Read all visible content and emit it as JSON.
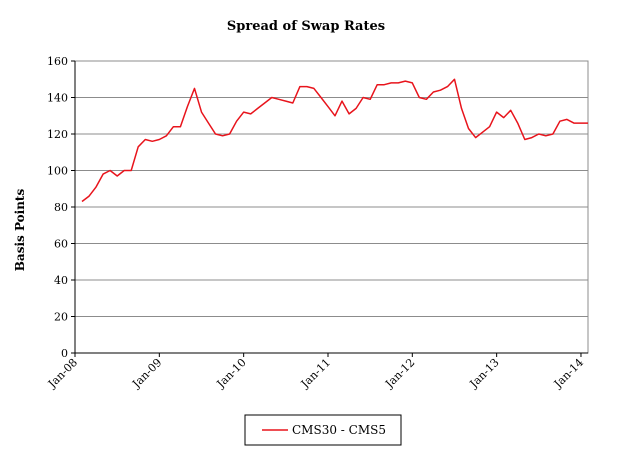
{
  "chart_data": {
    "type": "line",
    "title": "Spread of Swap Rates",
    "xlabel": "",
    "ylabel": "Basis Points",
    "ylim": [
      0,
      160
    ],
    "yticks": [
      0,
      20,
      40,
      60,
      80,
      100,
      120,
      140,
      160
    ],
    "xlim": [
      "Jan-08",
      "Feb-14"
    ],
    "xticks": [
      "Jan-08",
      "Jan-09",
      "Jan-10",
      "Jan-11",
      "Jan-12",
      "Jan-13",
      "Jan-14"
    ],
    "grid": "horizontal",
    "legend_position": "bottom",
    "series": [
      {
        "name": "CMS30 - CMS5",
        "color": "#e8141c",
        "x": [
          "Feb-08",
          "Mar-08",
          "Apr-08",
          "May-08",
          "Jun-08",
          "Jul-08",
          "Aug-08",
          "Sep-08",
          "Oct-08",
          "Nov-08",
          "Dec-08",
          "Jan-09",
          "Feb-09",
          "Mar-09",
          "Apr-09",
          "May-09",
          "Jun-09",
          "Jul-09",
          "Aug-09",
          "Sep-09",
          "Oct-09",
          "Nov-09",
          "Dec-09",
          "Jan-10",
          "Feb-10",
          "Mar-10",
          "Apr-10",
          "May-10",
          "Jun-10",
          "Jul-10",
          "Aug-10",
          "Sep-10",
          "Oct-10",
          "Nov-10",
          "Dec-10",
          "Jan-11",
          "Feb-11",
          "Mar-11",
          "Apr-11",
          "May-11",
          "Jun-11",
          "Jul-11",
          "Aug-11",
          "Sep-11",
          "Oct-11",
          "Nov-11",
          "Dec-11",
          "Jan-12",
          "Feb-12",
          "Mar-12",
          "Apr-12",
          "May-12",
          "Jun-12",
          "Jul-12",
          "Aug-12",
          "Sep-12",
          "Oct-12",
          "Nov-12",
          "Dec-12",
          "Jan-13",
          "Feb-13",
          "Mar-13",
          "Apr-13",
          "May-13",
          "Jun-13",
          "Jul-13",
          "Aug-13",
          "Sep-13",
          "Oct-13",
          "Nov-13",
          "Dec-13",
          "Jan-14",
          "Feb-14"
        ],
        "values": [
          83,
          86,
          91,
          98,
          100,
          97,
          100,
          100,
          113,
          117,
          116,
          117,
          119,
          124,
          124,
          135,
          145,
          132,
          126,
          120,
          119,
          120,
          127,
          132,
          131,
          134,
          137,
          140,
          139,
          138,
          137,
          146,
          146,
          145,
          140,
          135,
          130,
          138,
          131,
          134,
          140,
          139,
          147,
          147,
          148,
          148,
          149,
          148,
          140,
          139,
          143,
          144,
          146,
          150,
          134,
          123,
          118,
          121,
          124,
          132,
          129,
          133,
          126,
          117,
          118,
          120,
          119,
          120,
          127,
          128,
          126,
          126,
          126
        ]
      }
    ]
  }
}
